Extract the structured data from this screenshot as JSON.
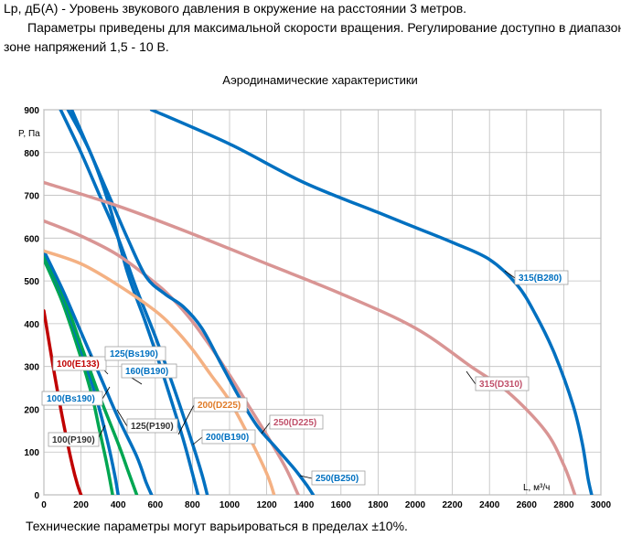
{
  "header": {
    "line1": "Lp, дБ(А) - Уровень звукового давления в окружение на расстоянии 3 метров.",
    "line2": "Параметры приведены для максимальной скорости вращения. Регулирование доступно в диапазоне",
    "line3": "зоне напряжений 1,5 - 10 В."
  },
  "footer": {
    "note": "Технические параметры могут варьироваться в пределах ±10%."
  },
  "chart_data": {
    "type": "line",
    "title": "Аэродинамические характеристики",
    "xlabel": "L, м³/ч",
    "ylabel": "P, Па",
    "xlim": [
      0,
      3000
    ],
    "ylim": [
      0,
      900
    ],
    "xticks": [
      0,
      200,
      400,
      600,
      800,
      1000,
      1200,
      1400,
      1600,
      1800,
      2000,
      2200,
      2400,
      2600,
      2800,
      3000
    ],
    "yticks": [
      0,
      100,
      200,
      300,
      400,
      500,
      600,
      700,
      800,
      900
    ],
    "grid": true,
    "series": [
      {
        "name": "100(E133)",
        "color": "#c00000",
        "points": [
          [
            0,
            430
          ],
          [
            50,
            300
          ],
          [
            100,
            180
          ],
          [
            150,
            75
          ],
          [
            180,
            25
          ],
          [
            200,
            0
          ]
        ]
      },
      {
        "name": "100(P190)",
        "color": "#00a651",
        "points": [
          [
            0,
            550
          ],
          [
            100,
            450
          ],
          [
            200,
            320
          ],
          [
            260,
            230
          ],
          [
            300,
            150
          ],
          [
            340,
            70
          ],
          [
            370,
            0
          ]
        ]
      },
      {
        "name": "100(Bs190)",
        "color": "#0070c0",
        "points": [
          [
            0,
            560
          ],
          [
            100,
            465
          ],
          [
            200,
            340
          ],
          [
            280,
            230
          ],
          [
            340,
            130
          ],
          [
            380,
            50
          ],
          [
            400,
            0
          ]
        ]
      },
      {
        "name": "125(P190)",
        "color": "#00a651",
        "points": [
          [
            0,
            560
          ],
          [
            100,
            470
          ],
          [
            200,
            350
          ],
          [
            300,
            230
          ],
          [
            400,
            120
          ],
          [
            450,
            60
          ],
          [
            500,
            0
          ]
        ]
      },
      {
        "name": "125(Bs190)",
        "color": "#0070c0",
        "points": [
          [
            0,
            570
          ],
          [
            100,
            480
          ],
          [
            200,
            380
          ],
          [
            300,
            280
          ],
          [
            400,
            180
          ],
          [
            500,
            90
          ],
          [
            550,
            30
          ],
          [
            580,
            0
          ]
        ]
      },
      {
        "name": "160(B190)",
        "color": "#0070c0",
        "points": [
          [
            130,
            900
          ],
          [
            250,
            800
          ],
          [
            350,
            680
          ],
          [
            450,
            520
          ],
          [
            550,
            400
          ],
          [
            650,
            270
          ],
          [
            750,
            130
          ],
          [
            800,
            50
          ],
          [
            830,
            0
          ]
        ]
      },
      {
        "name": "200(B190)",
        "color": "#0070c0",
        "points": [
          [
            90,
            900
          ],
          [
            200,
            800
          ],
          [
            300,
            700
          ],
          [
            400,
            600
          ],
          [
            500,
            480
          ],
          [
            600,
            370
          ],
          [
            700,
            250
          ],
          [
            800,
            120
          ],
          [
            850,
            50
          ],
          [
            880,
            0
          ]
        ]
      },
      {
        "name": "200(D225)",
        "color": "#f4b183",
        "points": [
          [
            0,
            570
          ],
          [
            200,
            540
          ],
          [
            400,
            490
          ],
          [
            600,
            430
          ],
          [
            700,
            390
          ],
          [
            800,
            340
          ],
          [
            900,
            280
          ],
          [
            1000,
            220
          ],
          [
            1100,
            140
          ],
          [
            1200,
            50
          ],
          [
            1240,
            0
          ]
        ]
      },
      {
        "name": "250(D225)",
        "color": "#d99594",
        "points": [
          [
            0,
            640
          ],
          [
            200,
            605
          ],
          [
            400,
            560
          ],
          [
            600,
            495
          ],
          [
            700,
            455
          ],
          [
            800,
            405
          ],
          [
            900,
            345
          ],
          [
            1000,
            280
          ],
          [
            1100,
            210
          ],
          [
            1200,
            140
          ],
          [
            1300,
            65
          ],
          [
            1370,
            0
          ]
        ]
      },
      {
        "name": "250(B250)",
        "color": "#0070c0",
        "points": [
          [
            150,
            900
          ],
          [
            250,
            800
          ],
          [
            350,
            700
          ],
          [
            450,
            600
          ],
          [
            550,
            510
          ],
          [
            650,
            470
          ],
          [
            750,
            440
          ],
          [
            850,
            390
          ],
          [
            950,
            310
          ],
          [
            1050,
            230
          ],
          [
            1150,
            160
          ],
          [
            1250,
            110
          ],
          [
            1350,
            60
          ],
          [
            1420,
            20
          ],
          [
            1450,
            0
          ]
        ]
      },
      {
        "name": "315(D310)",
        "color": "#d99594",
        "points": [
          [
            0,
            730
          ],
          [
            400,
            675
          ],
          [
            800,
            610
          ],
          [
            1200,
            540
          ],
          [
            1600,
            470
          ],
          [
            2000,
            390
          ],
          [
            2300,
            300
          ],
          [
            2500,
            240
          ],
          [
            2700,
            150
          ],
          [
            2800,
            70
          ],
          [
            2860,
            0
          ]
        ]
      },
      {
        "name": "315(B280)",
        "color": "#0070c0",
        "points": [
          [
            580,
            900
          ],
          [
            1000,
            820
          ],
          [
            1400,
            730
          ],
          [
            1800,
            660
          ],
          [
            2000,
            625
          ],
          [
            2200,
            590
          ],
          [
            2400,
            550
          ],
          [
            2550,
            490
          ],
          [
            2650,
            420
          ],
          [
            2750,
            330
          ],
          [
            2850,
            210
          ],
          [
            2900,
            120
          ],
          [
            2930,
            40
          ],
          [
            2950,
            0
          ]
        ]
      }
    ]
  }
}
